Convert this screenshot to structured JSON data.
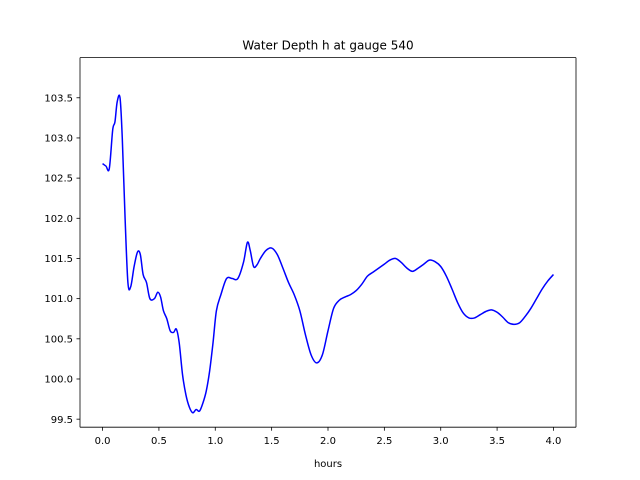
{
  "chart_data": {
    "type": "line",
    "title": "Water Depth h at gauge 540",
    "xlabel": "hours",
    "ylabel": "",
    "xlim": [
      -0.2,
      4.2
    ],
    "ylim": [
      99.4,
      104.0
    ],
    "grid": false,
    "x_ticks": [
      0.0,
      0.5,
      1.0,
      1.5,
      2.0,
      2.5,
      3.0,
      3.5,
      4.0
    ],
    "x_tick_labels": [
      "0.0",
      "0.5",
      "1.0",
      "1.5",
      "2.0",
      "2.5",
      "3.0",
      "3.5",
      "4.0"
    ],
    "y_ticks": [
      99.5,
      100.0,
      100.5,
      101.0,
      101.5,
      102.0,
      102.5,
      103.0,
      103.5
    ],
    "y_tick_labels": [
      "99.5",
      "100.0",
      "100.5",
      "101.0",
      "101.5",
      "102.0",
      "102.5",
      "103.0",
      "103.5"
    ],
    "series": [
      {
        "color": "#0000ff",
        "x": [
          0.0,
          0.03,
          0.06,
          0.09,
          0.11,
          0.13,
          0.155,
          0.175,
          0.2,
          0.225,
          0.25,
          0.28,
          0.31,
          0.335,
          0.36,
          0.39,
          0.42,
          0.46,
          0.49,
          0.515,
          0.54,
          0.57,
          0.6,
          0.63,
          0.655,
          0.68,
          0.71,
          0.74,
          0.77,
          0.8,
          0.83,
          0.86,
          0.89,
          0.92,
          0.95,
          0.98,
          1.01,
          1.05,
          1.1,
          1.15,
          1.2,
          1.25,
          1.285,
          1.31,
          1.34,
          1.37,
          1.4,
          1.45,
          1.5,
          1.55,
          1.6,
          1.65,
          1.7,
          1.75,
          1.8,
          1.85,
          1.9,
          1.95,
          2.0,
          2.05,
          2.1,
          2.15,
          2.2,
          2.25,
          2.3,
          2.35,
          2.4,
          2.45,
          2.5,
          2.55,
          2.6,
          2.65,
          2.7,
          2.75,
          2.8,
          2.85,
          2.9,
          2.95,
          3.0,
          3.05,
          3.1,
          3.15,
          3.2,
          3.25,
          3.3,
          3.35,
          3.4,
          3.45,
          3.5,
          3.55,
          3.6,
          3.65,
          3.7,
          3.75,
          3.8,
          3.85,
          3.9,
          3.95,
          4.0
        ],
        "y": [
          102.68,
          102.65,
          102.62,
          103.1,
          103.2,
          103.45,
          103.5,
          103.0,
          102.0,
          101.2,
          101.15,
          101.4,
          101.58,
          101.55,
          101.3,
          101.2,
          101.0,
          101.0,
          101.08,
          101.02,
          100.85,
          100.75,
          100.6,
          100.58,
          100.62,
          100.45,
          100.05,
          99.8,
          99.65,
          99.58,
          99.62,
          99.6,
          99.7,
          99.85,
          100.1,
          100.45,
          100.85,
          101.05,
          101.25,
          101.25,
          101.25,
          101.45,
          101.7,
          101.6,
          101.4,
          101.42,
          101.5,
          101.6,
          101.63,
          101.55,
          101.38,
          101.2,
          101.05,
          100.85,
          100.55,
          100.3,
          100.2,
          100.3,
          100.6,
          100.88,
          100.98,
          101.02,
          101.05,
          101.1,
          101.18,
          101.28,
          101.33,
          101.38,
          101.43,
          101.48,
          101.5,
          101.45,
          101.38,
          101.34,
          101.38,
          101.43,
          101.48,
          101.46,
          101.4,
          101.28,
          101.12,
          100.95,
          100.82,
          100.76,
          100.76,
          100.8,
          100.84,
          100.86,
          100.83,
          100.77,
          100.7,
          100.68,
          100.7,
          100.78,
          100.88,
          101.0,
          101.12,
          101.22,
          101.3
        ]
      }
    ]
  }
}
